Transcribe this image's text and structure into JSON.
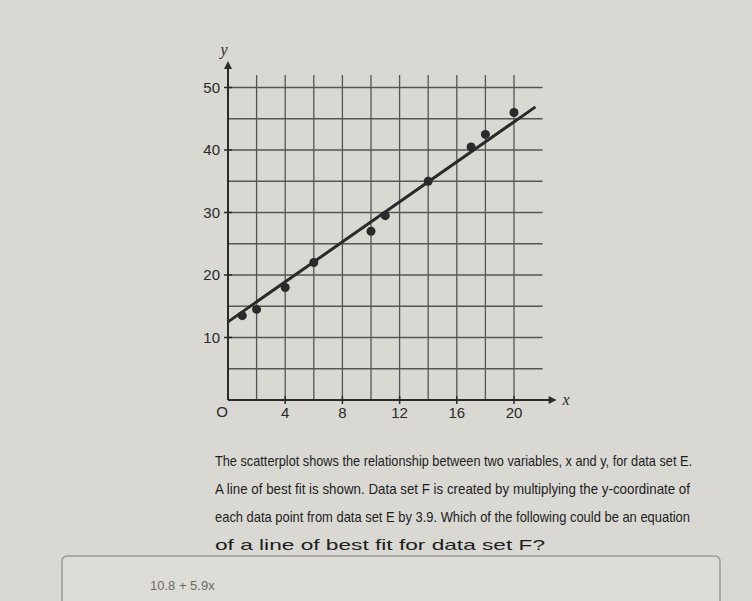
{
  "chart_data": {
    "type": "scatter",
    "x_label": "x",
    "y_label": "y",
    "origin_label": "O",
    "x": [
      1,
      2,
      4,
      6,
      10,
      11,
      14,
      17,
      18,
      20
    ],
    "values": [
      13.5,
      14.5,
      18,
      22,
      27,
      29.5,
      35,
      40.5,
      42.5,
      46
    ],
    "color": "#2a2a2a",
    "marker": "circle",
    "best_fit": {
      "x": [
        0,
        21.5
      ],
      "values": [
        12.5,
        46.9
      ],
      "color": "#2a2a2a"
    },
    "xlim": [
      0,
      22
    ],
    "ylim": [
      0,
      52
    ],
    "xticks": [
      4,
      8,
      12,
      16,
      20
    ],
    "yticks": [
      10,
      20,
      30,
      40,
      50
    ],
    "grid": true
  },
  "question": {
    "lines": [
      "The scatterplot shows the relationship between two variables, x and y, for data set E.",
      "A line of best fit is shown. Data set F is created by multiplying the y-coordinate of",
      "each data point from data set E by 3.9. Which of the following could be an equation",
      "of a line of best fit for data set F?"
    ]
  },
  "choice": {
    "text": "10.8 + 5.9x"
  }
}
